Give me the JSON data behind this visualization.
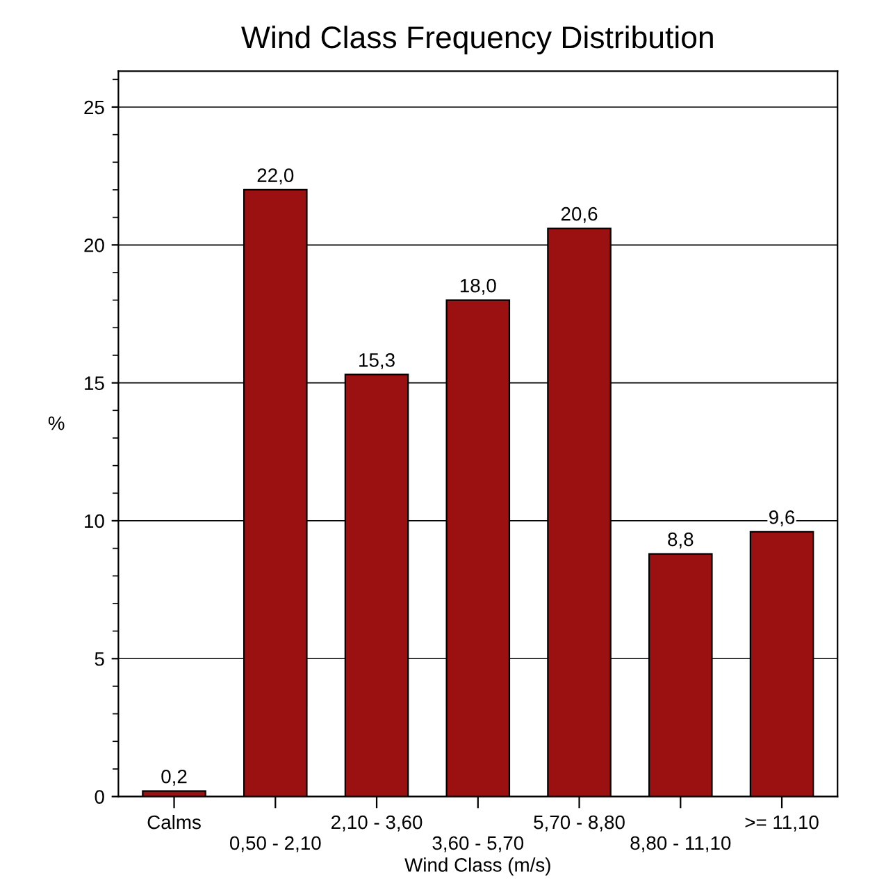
{
  "chart_data": {
    "type": "bar",
    "title": "Wind Class Frequency Distribution",
    "xlabel": "Wind Class (m/s)",
    "ylabel": "%",
    "categories": [
      "Calms",
      "0,50 - 2,10",
      "2,10 - 3,60",
      "3,60 - 5,70",
      "5,70 - 8,80",
      "8,80 - 11,10",
      ">= 11,10"
    ],
    "values": [
      0.2,
      22.0,
      15.3,
      18.0,
      20.6,
      8.8,
      9.6
    ],
    "value_labels": [
      "0,2",
      "22,0",
      "15,3",
      "18,0",
      "20,6",
      "8,8",
      "9,6"
    ],
    "color": "#9b1010",
    "ylim": [
      0,
      26.3
    ],
    "yticks": [
      0,
      5,
      10,
      15,
      20,
      25
    ],
    "grid": "y"
  }
}
